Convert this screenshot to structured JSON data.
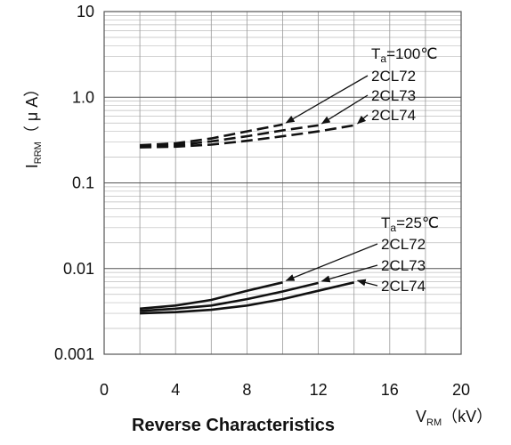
{
  "chart_data": {
    "type": "line",
    "title": "Reverse Characteristics",
    "xlabel": {
      "main": "V",
      "sub": "RM",
      "unit": "（kV）"
    },
    "ylabel": {
      "main": "I",
      "sub": "RRM",
      "unit": "（ μ A）"
    },
    "xlim": [
      0,
      20
    ],
    "ylim": [
      0.001,
      10
    ],
    "yscale": "log",
    "grid": true,
    "x_ticks": [
      "0",
      "4",
      "8",
      "12",
      "16",
      "20"
    ],
    "x_tick_values": [
      0,
      4,
      8,
      12,
      16,
      20
    ],
    "y_ticks": [
      "0.001",
      "0.01",
      "0.1",
      "1.0",
      "10"
    ],
    "y_tick_values": [
      0.001,
      0.01,
      0.1,
      1,
      10
    ],
    "groups": [
      {
        "condition": {
          "main": "T",
          "sub": "a",
          "rest": "=100℃"
        },
        "linestyle": "dashed"
      },
      {
        "condition": {
          "main": "T",
          "sub": "a",
          "rest": "=25℃"
        },
        "linestyle": "solid"
      }
    ],
    "series": [
      {
        "name": "2CL72",
        "group": 0,
        "x": [
          2,
          4,
          6,
          8,
          10
        ],
        "y": [
          0.275,
          0.29,
          0.33,
          0.4,
          0.48
        ]
      },
      {
        "name": "2CL73",
        "group": 0,
        "x": [
          2,
          4,
          6,
          8,
          10,
          12
        ],
        "y": [
          0.265,
          0.275,
          0.305,
          0.35,
          0.41,
          0.47
        ]
      },
      {
        "name": "2CL74",
        "group": 0,
        "x": [
          2,
          4,
          6,
          8,
          10,
          12,
          14
        ],
        "y": [
          0.26,
          0.265,
          0.28,
          0.31,
          0.35,
          0.4,
          0.47
        ]
      },
      {
        "name": "2CL72",
        "group": 1,
        "x": [
          2,
          4,
          6,
          8,
          10
        ],
        "y": [
          0.0034,
          0.0037,
          0.0043,
          0.0055,
          0.0069
        ]
      },
      {
        "name": "2CL73",
        "group": 1,
        "x": [
          2,
          4,
          6,
          8,
          10,
          12
        ],
        "y": [
          0.0032,
          0.0034,
          0.0037,
          0.0044,
          0.0054,
          0.0068
        ]
      },
      {
        "name": "2CL74",
        "group": 1,
        "x": [
          2,
          4,
          6,
          8,
          10,
          12,
          14
        ],
        "y": [
          0.003,
          0.0031,
          0.0033,
          0.0037,
          0.0044,
          0.0055,
          0.0069
        ]
      }
    ]
  }
}
